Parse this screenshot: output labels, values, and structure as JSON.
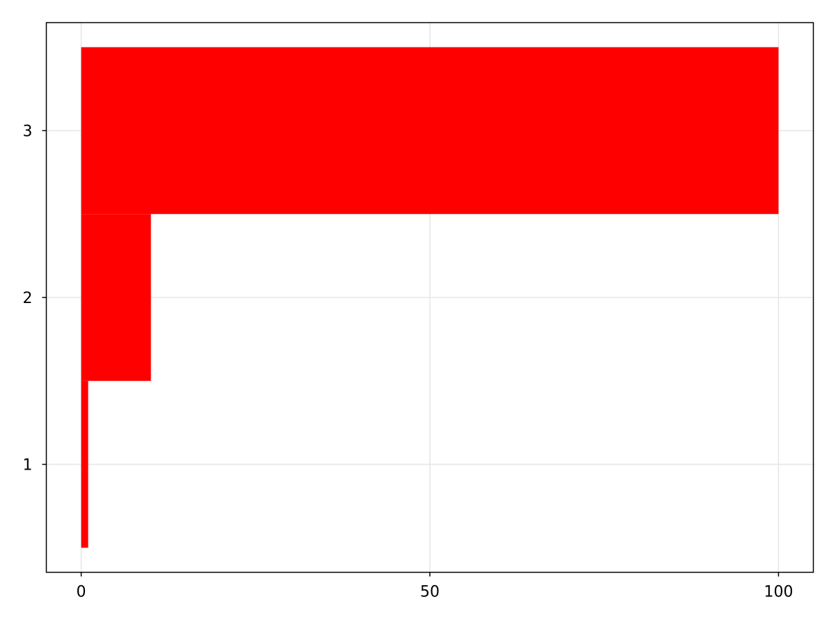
{
  "chart_data": {
    "type": "bar",
    "orientation": "horizontal",
    "categories": [
      1,
      2,
      3
    ],
    "values": [
      1,
      10,
      100
    ],
    "bar_color": "#ff0000",
    "title": "",
    "xlabel": "",
    "ylabel": "",
    "xlim": [
      -5,
      105
    ],
    "ylim": [
      0.353,
      3.647
    ],
    "xticks": [
      0,
      50,
      100
    ],
    "yticks": [
      1,
      2,
      3
    ],
    "xtick_labels": [
      "0",
      "50",
      "100"
    ],
    "ytick_labels": [
      "1",
      "2",
      "3"
    ],
    "grid": true,
    "grid_color": "#e5e5e5"
  }
}
